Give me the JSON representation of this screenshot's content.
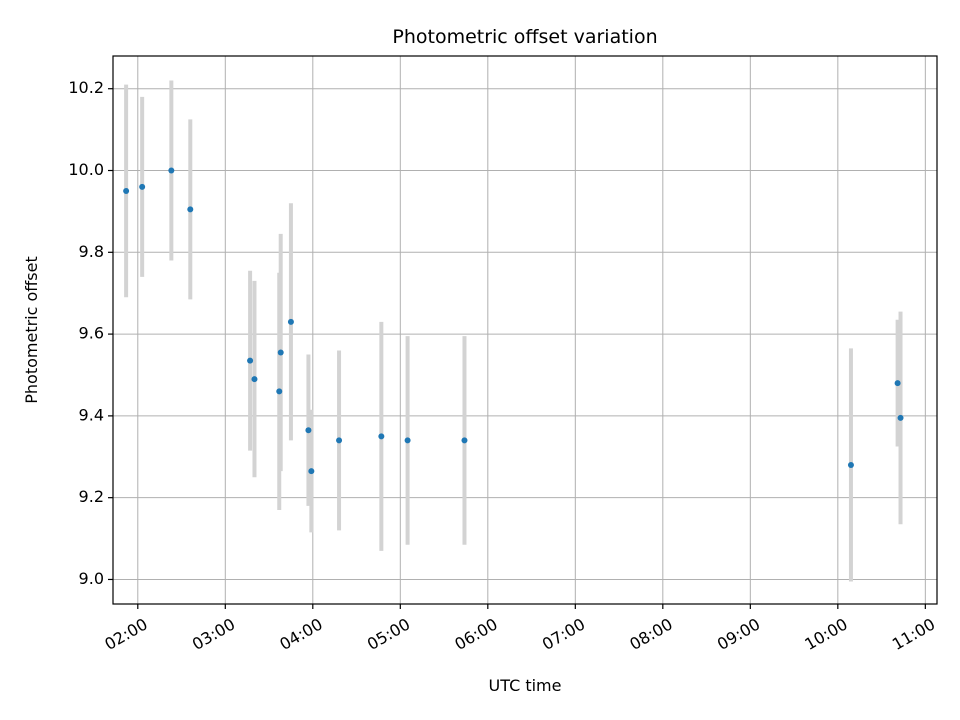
{
  "chart_data": {
    "type": "scatter",
    "title": "Photometric offset variation",
    "xlabel": "UTC time",
    "ylabel": "Photometric offset",
    "xlim": [
      "01:43",
      "11:08"
    ],
    "ylim": [
      8.94,
      10.28
    ],
    "xticks": [
      "02:00",
      "03:00",
      "04:00",
      "05:00",
      "06:00",
      "07:00",
      "08:00",
      "09:00",
      "10:00",
      "11:00"
    ],
    "yticks": [
      "9.0",
      "9.2",
      "9.4",
      "9.6",
      "9.8",
      "10.0",
      "10.2"
    ],
    "grid": true,
    "errorbar_color": "#d3d3d3",
    "marker_color": "#1f77b4",
    "points": [
      {
        "x": "01:52",
        "y": 9.95,
        "yerr": 0.26
      },
      {
        "x": "02:03",
        "y": 9.96,
        "yerr": 0.22
      },
      {
        "x": "02:23",
        "y": 10.0,
        "yerr": 0.22
      },
      {
        "x": "02:36",
        "y": 9.905,
        "yerr": 0.22
      },
      {
        "x": "03:17",
        "y": 9.535,
        "yerr": 0.22
      },
      {
        "x": "03:20",
        "y": 9.49,
        "yerr": 0.24
      },
      {
        "x": "03:37",
        "y": 9.46,
        "yerr": 0.29
      },
      {
        "x": "03:38",
        "y": 9.555,
        "yerr": 0.29
      },
      {
        "x": "03:45",
        "y": 9.63,
        "yerr": 0.29
      },
      {
        "x": "03:57",
        "y": 9.365,
        "yerr": 0.185
      },
      {
        "x": "03:59",
        "y": 9.265,
        "yerr": 0.15
      },
      {
        "x": "04:18",
        "y": 9.34,
        "yerr": 0.22
      },
      {
        "x": "04:47",
        "y": 9.35,
        "yerr": 0.28
      },
      {
        "x": "05:05",
        "y": 9.34,
        "yerr": 0.255
      },
      {
        "x": "05:44",
        "y": 9.34,
        "yerr": 0.255
      },
      {
        "x": "10:09",
        "y": 9.28,
        "yerr": 0.285
      },
      {
        "x": "10:41",
        "y": 9.48,
        "yerr": 0.155
      },
      {
        "x": "10:43",
        "y": 9.395,
        "yerr": 0.26
      }
    ]
  }
}
